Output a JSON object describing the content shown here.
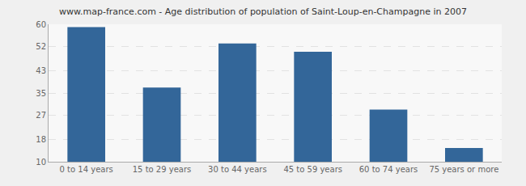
{
  "chart_data": {
    "type": "bar",
    "title": "www.map-france.com - Age distribution of population of Saint-Loup-en-Champagne in 2007",
    "categories": [
      "0 to 14 years",
      "15 to 29 years",
      "30 to 44 years",
      "45 to 59 years",
      "60 to 74 years",
      "75 years or more"
    ],
    "values": [
      59,
      37,
      53,
      50,
      29,
      15
    ],
    "color": "#336699",
    "ylim": [
      10,
      60
    ],
    "yticks": [
      10,
      18,
      27,
      35,
      43,
      52,
      60
    ],
    "grid": true
  }
}
